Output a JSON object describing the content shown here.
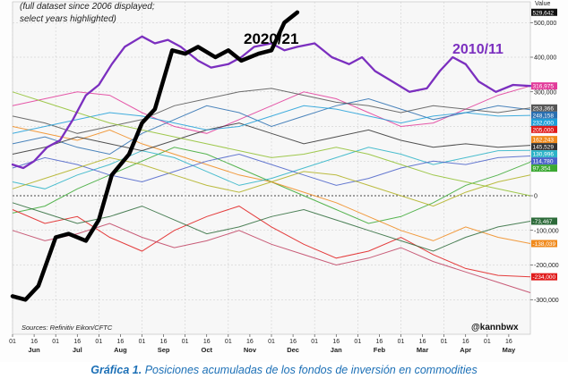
{
  "chart_data": {
    "type": "line",
    "title": "",
    "note": [
      "(full dataset since 2006 displayed;",
      "select years highlighted)"
    ],
    "source": "Sources: Refinitiv Eikon/CFTC",
    "credit": "@kannbwx",
    "ylabel_top": "Value",
    "ylim": [
      -400000,
      560000
    ],
    "y_ticks": [
      {
        "v": 500000,
        "label": "500,000"
      },
      {
        "v": 400000,
        "label": "400,000"
      },
      {
        "v": 300000,
        "label": "300,000"
      },
      {
        "v": 200000,
        "label": "200,000"
      },
      {
        "v": 100000,
        "label": "100,000"
      },
      {
        "v": 0,
        "label": "0"
      },
      {
        "v": -100000,
        "label": "-100,000"
      },
      {
        "v": -200000,
        "label": "-200,000"
      },
      {
        "v": -300000,
        "label": "-300,000"
      }
    ],
    "x_day_ticks": [
      "01",
      "16",
      "01",
      "16",
      "01",
      "16",
      "01",
      "16",
      "01",
      "16",
      "01",
      "16",
      "01",
      "16",
      "01",
      "16",
      "01",
      "16",
      "01",
      "16",
      "01",
      "16",
      "01",
      "16"
    ],
    "months": [
      "Jun",
      "Jul",
      "Aug",
      "Sep",
      "Oct",
      "Nov",
      "Dec",
      "Jan",
      "Feb",
      "Mar",
      "Apr",
      "May"
    ],
    "value_labels": [
      {
        "label": "529,642",
        "v": 529642,
        "color": "#111111"
      },
      {
        "label": "316,975",
        "v": 316975,
        "color": "#e23b9a"
      },
      {
        "label": "253,366",
        "v": 253366,
        "color": "#555555"
      },
      {
        "label": "248,158",
        "v": 248158,
        "color": "#2a6fb0"
      },
      {
        "label": "232,000",
        "v": 232000,
        "color": "#1e9fd8"
      },
      {
        "label": "205,000",
        "v": 205000,
        "color": "#e01b1b"
      },
      {
        "label": "162,243",
        "v": 162243,
        "color": "#f08a1c"
      },
      {
        "label": "145,529",
        "v": 145529,
        "color": "#333333"
      },
      {
        "label": "130,996",
        "v": 130996,
        "color": "#2bb3c7"
      },
      {
        "label": "114,780",
        "v": 114780,
        "color": "#4a62c9"
      },
      {
        "label": "97,354",
        "v": 97354,
        "color": "#3aa832"
      },
      {
        "label": "-73,467",
        "v": -73467,
        "color": "#2d6b3a"
      },
      {
        "label": "-138,039",
        "v": -138039,
        "color": "#f08a1c"
      },
      {
        "label": "-234,000",
        "v": -234000,
        "color": "#e01b1b"
      }
    ],
    "highlight_labels": [
      {
        "text": "2020/21",
        "color": "#111111"
      },
      {
        "text": "2010/11",
        "color": "#7b2fbf"
      }
    ],
    "series": [
      {
        "name": "2020/21",
        "color": "#000000",
        "width": 4.5,
        "x": [
          0,
          0.3,
          0.6,
          1.0,
          1.3,
          1.7,
          2.0,
          2.3,
          2.7,
          3.0,
          3.3,
          3.7,
          4.0,
          4.3,
          4.7,
          5.0,
          5.3,
          5.7,
          6.0,
          6.3,
          6.6
        ],
        "values": [
          -290000,
          -300000,
          -260000,
          -120000,
          -110000,
          -130000,
          -70000,
          60000,
          120000,
          210000,
          250000,
          420000,
          410000,
          430000,
          400000,
          420000,
          390000,
          410000,
          420000,
          500000,
          529642
        ]
      },
      {
        "name": "2010/11",
        "color": "#7b2fbf",
        "width": 2.3,
        "x": [
          0,
          0.25,
          0.5,
          0.8,
          1.1,
          1.4,
          1.7,
          2.0,
          2.3,
          2.6,
          3.0,
          3.3,
          3.6,
          3.9,
          4.3,
          4.6,
          5.0,
          5.3,
          5.6,
          6.0,
          6.3,
          6.6,
          7.0,
          7.4,
          7.8,
          8.1,
          8.4,
          8.8,
          9.2,
          9.6,
          9.9,
          10.2,
          10.5,
          10.8,
          11.2,
          11.6,
          12.0
        ],
        "values": [
          90000,
          80000,
          100000,
          140000,
          160000,
          220000,
          290000,
          320000,
          380000,
          430000,
          460000,
          440000,
          450000,
          430000,
          390000,
          370000,
          380000,
          400000,
          430000,
          440000,
          420000,
          430000,
          440000,
          400000,
          380000,
          400000,
          360000,
          330000,
          300000,
          310000,
          360000,
          400000,
          380000,
          330000,
          300000,
          320000,
          316975
        ]
      }
    ],
    "background_series": [
      {
        "color": "#e23b9a",
        "values": [
          260000,
          280000,
          300000,
          290000,
          240000,
          200000,
          180000,
          220000,
          260000,
          300000,
          280000,
          240000,
          200000,
          210000,
          250000,
          290000,
          316975
        ]
      },
      {
        "color": "#3aa832",
        "values": [
          -50000,
          -30000,
          20000,
          60000,
          100000,
          140000,
          120000,
          80000,
          40000,
          0,
          -40000,
          -80000,
          -60000,
          -20000,
          30000,
          60000,
          97354
        ]
      },
      {
        "color": "#f08a1c",
        "values": [
          200000,
          180000,
          160000,
          190000,
          150000,
          120000,
          90000,
          60000,
          40000,
          10000,
          -20000,
          -60000,
          -100000,
          -130000,
          -90000,
          -120000,
          -138039
        ]
      },
      {
        "color": "#2a6fb0",
        "values": [
          150000,
          170000,
          140000,
          120000,
          180000,
          220000,
          260000,
          240000,
          200000,
          230000,
          260000,
          280000,
          250000,
          220000,
          240000,
          260000,
          248158
        ]
      },
      {
        "color": "#555555",
        "values": [
          230000,
          210000,
          180000,
          200000,
          220000,
          260000,
          280000,
          300000,
          310000,
          290000,
          270000,
          260000,
          240000,
          260000,
          250000,
          240000,
          253366
        ]
      },
      {
        "color": "#e01b1b",
        "values": [
          -40000,
          -80000,
          -60000,
          -120000,
          -160000,
          -100000,
          -60000,
          -30000,
          -90000,
          -140000,
          -180000,
          -160000,
          -120000,
          -170000,
          -210000,
          -230000,
          -234000
        ]
      },
      {
        "color": "#2bb3c7",
        "values": [
          40000,
          20000,
          60000,
          90000,
          130000,
          110000,
          70000,
          30000,
          50000,
          80000,
          110000,
          140000,
          120000,
          90000,
          110000,
          130000,
          130996
        ]
      },
      {
        "color": "#4a62c9",
        "values": [
          80000,
          110000,
          90000,
          60000,
          40000,
          70000,
          100000,
          120000,
          90000,
          60000,
          30000,
          50000,
          80000,
          100000,
          90000,
          110000,
          114780
        ]
      },
      {
        "color": "#2d6b3a",
        "values": [
          -20000,
          -50000,
          -80000,
          -60000,
          -30000,
          -70000,
          -110000,
          -90000,
          -60000,
          -40000,
          -70000,
          -100000,
          -130000,
          -160000,
          -120000,
          -90000,
          -73467
        ]
      },
      {
        "color": "#333333",
        "values": [
          120000,
          140000,
          170000,
          150000,
          130000,
          160000,
          190000,
          210000,
          180000,
          150000,
          170000,
          190000,
          160000,
          140000,
          150000,
          140000,
          145529
        ]
      },
      {
        "color": "#1e9fd8",
        "values": [
          180000,
          200000,
          220000,
          240000,
          230000,
          210000,
          190000,
          200000,
          230000,
          260000,
          250000,
          230000,
          210000,
          230000,
          240000,
          230000,
          232000
        ]
      },
      {
        "color": "#b0b020",
        "values": [
          20000,
          50000,
          80000,
          110000,
          90000,
          60000,
          30000,
          10000,
          40000,
          70000,
          60000,
          30000,
          0,
          -30000,
          10000,
          40000,
          60000
        ]
      },
      {
        "color": "#c04060",
        "values": [
          -100000,
          -130000,
          -110000,
          -80000,
          -120000,
          -150000,
          -130000,
          -100000,
          -140000,
          -170000,
          -200000,
          -180000,
          -150000,
          -190000,
          -220000,
          -250000,
          -280000
        ]
      },
      {
        "color": "#8fbf2f",
        "values": [
          300000,
          270000,
          240000,
          210000,
          190000,
          170000,
          150000,
          130000,
          110000,
          120000,
          140000,
          120000,
          90000,
          60000,
          40000,
          20000,
          0
        ]
      }
    ]
  },
  "caption": {
    "label": "Gráfica 1.",
    "text": "Posiciones acumuladas de los fondos de inversión en commodities"
  }
}
